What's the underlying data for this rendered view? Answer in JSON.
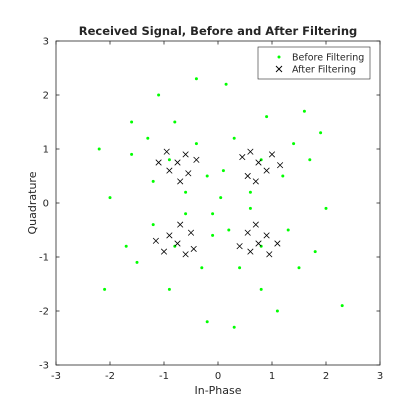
{
  "chart_data": {
    "type": "scatter",
    "title": "Received Signal, Before and After Filtering",
    "xlabel": "In-Phase",
    "ylabel": "Quadrature",
    "xlim": [
      -3,
      3
    ],
    "ylim": [
      -3,
      3
    ],
    "xticks": [
      -3,
      -2,
      -1,
      0,
      1,
      2,
      3
    ],
    "yticks": [
      -3,
      -2,
      -1,
      0,
      1,
      2,
      3
    ],
    "grid": false,
    "legend_position": "top-right",
    "series": [
      {
        "name": "Before Filtering",
        "marker": "dot",
        "color": "#00ff00",
        "points": [
          [
            -0.9,
            0.8
          ],
          [
            -0.4,
            1.1
          ],
          [
            -1.2,
            0.4
          ],
          [
            -0.6,
            0.2
          ],
          [
            -1.3,
            1.2
          ],
          [
            -0.2,
            0.5
          ],
          [
            -0.8,
            1.5
          ],
          [
            -1.6,
            0.9
          ],
          [
            0.8,
            0.8
          ],
          [
            0.3,
            1.2
          ],
          [
            1.2,
            0.5
          ],
          [
            0.6,
            0.2
          ],
          [
            1.4,
            1.1
          ],
          [
            0.1,
            0.6
          ],
          [
            0.9,
            1.6
          ],
          [
            1.7,
            0.8
          ],
          [
            -0.8,
            -0.8
          ],
          [
            -0.3,
            -1.2
          ],
          [
            -1.2,
            -0.4
          ],
          [
            -0.6,
            -0.2
          ],
          [
            -1.5,
            -1.1
          ],
          [
            -0.1,
            -0.6
          ],
          [
            -0.9,
            -1.6
          ],
          [
            -1.7,
            -0.8
          ],
          [
            0.8,
            -0.8
          ],
          [
            0.4,
            -1.2
          ],
          [
            1.3,
            -0.5
          ],
          [
            0.6,
            -0.1
          ],
          [
            1.5,
            -1.2
          ],
          [
            0.2,
            -0.5
          ],
          [
            0.8,
            -1.6
          ],
          [
            1.8,
            -0.9
          ],
          [
            0.05,
            0.1
          ],
          [
            -0.1,
            -0.2
          ],
          [
            0.15,
            2.2
          ],
          [
            -0.4,
            2.3
          ],
          [
            0.3,
            -2.3
          ],
          [
            -0.2,
            -2.2
          ],
          [
            2.3,
            -1.9
          ],
          [
            -2.1,
            -1.6
          ],
          [
            -1.6,
            1.5
          ],
          [
            1.9,
            1.3
          ],
          [
            -2.0,
            0.1
          ],
          [
            2.0,
            -0.1
          ],
          [
            1.6,
            1.7
          ],
          [
            -1.1,
            2.0
          ],
          [
            1.1,
            -2.0
          ],
          [
            -2.2,
            1.0
          ]
        ]
      },
      {
        "name": "After Filtering",
        "marker": "x",
        "color": "#000000",
        "points": [
          [
            -0.75,
            0.75
          ],
          [
            -0.6,
            0.9
          ],
          [
            -0.9,
            0.6
          ],
          [
            -0.55,
            0.55
          ],
          [
            -0.95,
            0.95
          ],
          [
            -0.7,
            0.4
          ],
          [
            -0.4,
            0.8
          ],
          [
            -1.1,
            0.75
          ],
          [
            0.75,
            0.75
          ],
          [
            0.6,
            0.95
          ],
          [
            0.9,
            0.6
          ],
          [
            0.55,
            0.5
          ],
          [
            1.0,
            0.9
          ],
          [
            0.7,
            0.4
          ],
          [
            0.45,
            0.85
          ],
          [
            1.15,
            0.7
          ],
          [
            -0.75,
            -0.75
          ],
          [
            -0.6,
            -0.95
          ],
          [
            -0.9,
            -0.6
          ],
          [
            -0.5,
            -0.55
          ],
          [
            -1.0,
            -0.9
          ],
          [
            -0.7,
            -0.4
          ],
          [
            -0.45,
            -0.85
          ],
          [
            -1.15,
            -0.7
          ],
          [
            0.75,
            -0.75
          ],
          [
            0.6,
            -0.9
          ],
          [
            0.9,
            -0.6
          ],
          [
            0.55,
            -0.55
          ],
          [
            0.95,
            -0.95
          ],
          [
            0.7,
            -0.4
          ],
          [
            0.4,
            -0.8
          ],
          [
            1.1,
            -0.75
          ]
        ]
      }
    ]
  }
}
